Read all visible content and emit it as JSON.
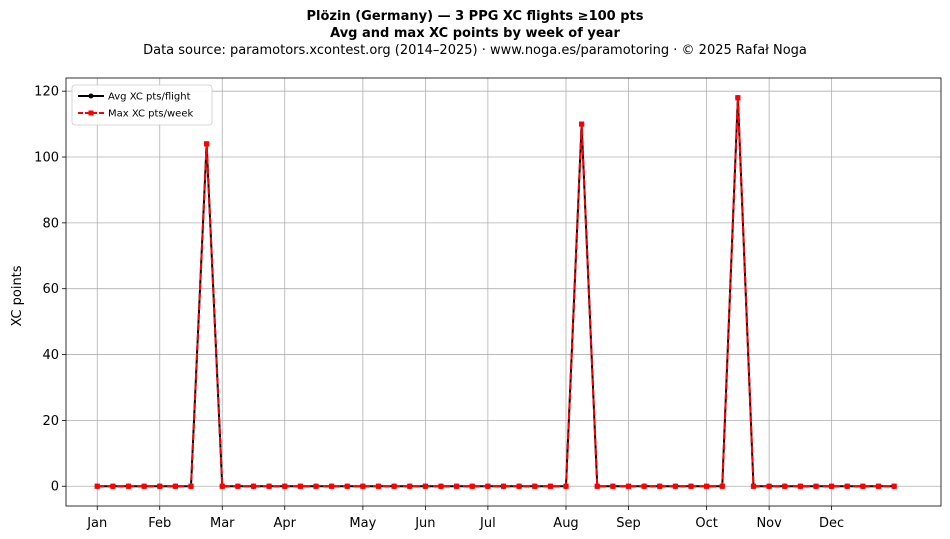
{
  "chart_data": {
    "type": "line",
    "title_line1": "Plözin (Germany)  —  3 PPG XC flights ≥100 pts",
    "title_line2": "Avg and max XC points by week of year",
    "subtitle": "Data source: paramotors.xcontest.org (2014–2025)  ·  www.noga.es/paramotoring  ·  © 2025 Rafał Noga",
    "xlabel": "",
    "ylabel": "XC points",
    "xlim": [
      -2,
      54
    ],
    "ylim": [
      -6,
      124
    ],
    "yticks": [
      0,
      20,
      40,
      60,
      80,
      100,
      120
    ],
    "xticks": [
      {
        "label": "Jan",
        "x": 0
      },
      {
        "label": "Feb",
        "x": 4
      },
      {
        "label": "Mar",
        "x": 8
      },
      {
        "label": "Apr",
        "x": 12
      },
      {
        "label": "May",
        "x": 17
      },
      {
        "label": "Jun",
        "x": 21
      },
      {
        "label": "Jul",
        "x": 25
      },
      {
        "label": "Aug",
        "x": 30
      },
      {
        "label": "Sep",
        "x": 34
      },
      {
        "label": "Oct",
        "x": 39
      },
      {
        "label": "Nov",
        "x": 43
      },
      {
        "label": "Dec",
        "x": 47
      }
    ],
    "grid": true,
    "legend_position": "top-left",
    "x": [
      0,
      1,
      2,
      3,
      4,
      5,
      6,
      7,
      8,
      9,
      10,
      11,
      12,
      13,
      14,
      15,
      16,
      17,
      18,
      19,
      20,
      21,
      22,
      23,
      24,
      25,
      26,
      27,
      28,
      29,
      30,
      31,
      32,
      33,
      34,
      35,
      36,
      37,
      38,
      39,
      40,
      41,
      42,
      43,
      44,
      45,
      46,
      47,
      48,
      49,
      50,
      51
    ],
    "series": [
      {
        "name": "Avg XC pts/flight",
        "color": "#000000",
        "style": "solid-circle",
        "values": [
          0,
          0,
          0,
          0,
          0,
          0,
          0,
          104,
          0,
          0,
          0,
          0,
          0,
          0,
          0,
          0,
          0,
          0,
          0,
          0,
          0,
          0,
          0,
          0,
          0,
          0,
          0,
          0,
          0,
          0,
          0,
          110,
          0,
          0,
          0,
          0,
          0,
          0,
          0,
          0,
          0,
          118,
          0,
          0,
          0,
          0,
          0,
          0,
          0,
          0,
          0,
          0
        ]
      },
      {
        "name": "Max XC pts/week",
        "color": "#ff0000",
        "style": "dashed-square",
        "values": [
          0,
          0,
          0,
          0,
          0,
          0,
          0,
          104,
          0,
          0,
          0,
          0,
          0,
          0,
          0,
          0,
          0,
          0,
          0,
          0,
          0,
          0,
          0,
          0,
          0,
          0,
          0,
          0,
          0,
          0,
          0,
          110,
          0,
          0,
          0,
          0,
          0,
          0,
          0,
          0,
          0,
          118,
          0,
          0,
          0,
          0,
          0,
          0,
          0,
          0,
          0,
          0
        ]
      }
    ]
  }
}
